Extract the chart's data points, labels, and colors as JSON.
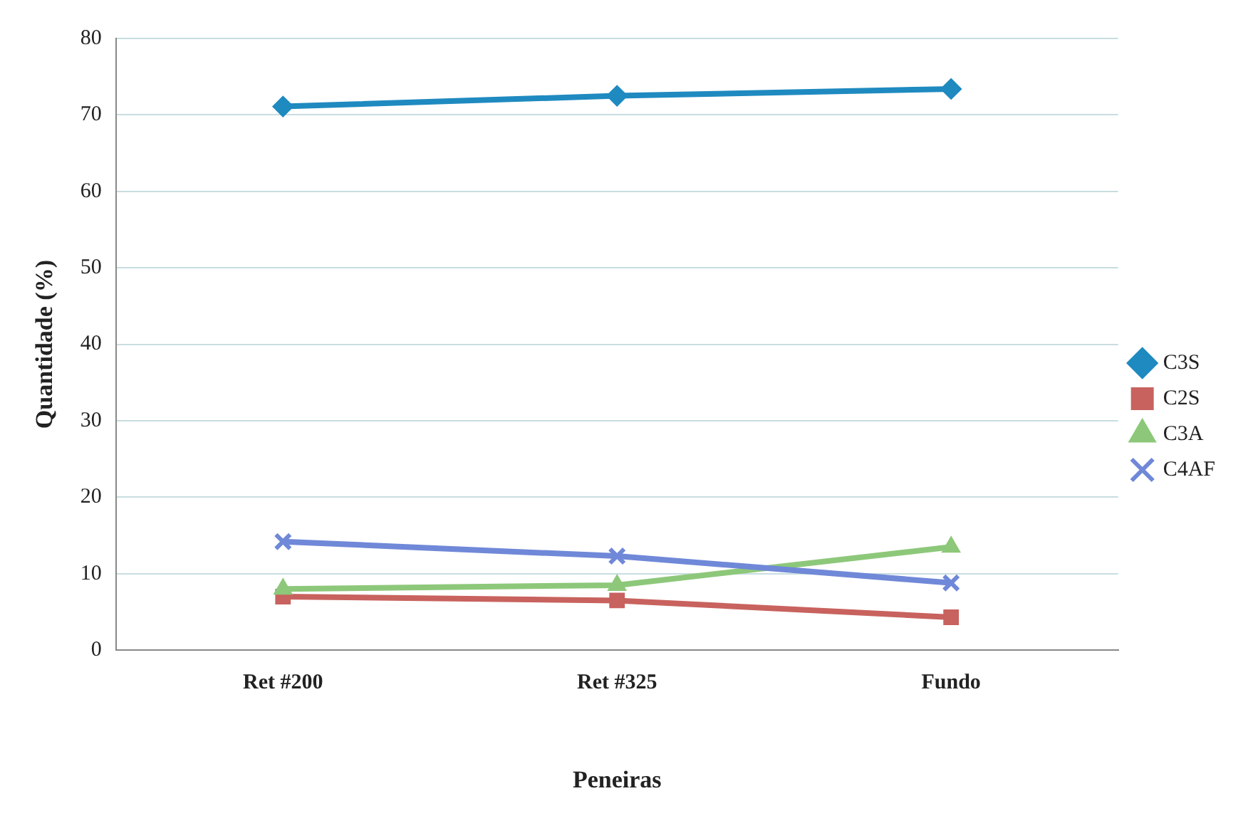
{
  "chart_data": {
    "type": "line",
    "xlabel": "Peneiras",
    "ylabel": "Quantidade (%)",
    "categories": [
      "Ret #200",
      "Ret #325",
      "Fundo"
    ],
    "series": [
      {
        "name": "C3S",
        "color": "#1f8ac0",
        "marker": "diamond",
        "values": [
          71.1,
          72.5,
          73.4
        ]
      },
      {
        "name": "C2S",
        "color": "#c8625e",
        "marker": "square",
        "values": [
          7.0,
          6.5,
          4.3
        ]
      },
      {
        "name": "C3A",
        "color": "#8dc87a",
        "marker": "triangle",
        "values": [
          8.0,
          8.5,
          13.5
        ]
      },
      {
        "name": "C4AF",
        "color": "#7088d8",
        "marker": "cross",
        "values": [
          14.2,
          12.3,
          8.8
        ]
      }
    ],
    "ylim": [
      0,
      80
    ],
    "yticks": [
      0,
      10,
      20,
      30,
      40,
      50,
      60,
      70,
      80
    ],
    "grid": "y",
    "legend": "right",
    "line_style": "solid"
  }
}
